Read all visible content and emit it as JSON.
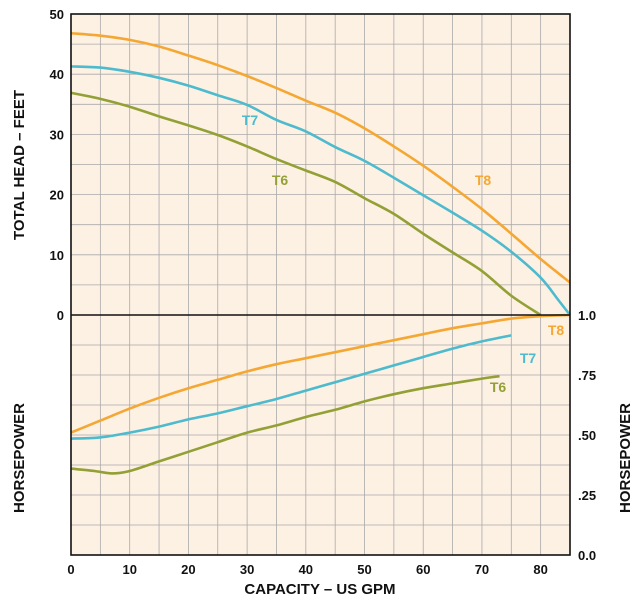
{
  "chart_data": [
    {
      "type": "line",
      "title": "",
      "xlabel": "CAPACITY – US GPM",
      "ylabel": "TOTAL HEAD – FEET",
      "xlim": [
        0,
        85
      ],
      "ylim": [
        0,
        50
      ],
      "x_ticks": [
        "0",
        "10",
        "20",
        "30",
        "40",
        "50",
        "60",
        "70",
        "80"
      ],
      "y_ticks": [
        "0",
        "10",
        "20",
        "30",
        "40",
        "50"
      ],
      "grid": true,
      "background": "#fdf1e4",
      "series": [
        {
          "name": "T8",
          "color": "#f5a733",
          "points": [
            [
              0,
              46.8
            ],
            [
              5,
              46.4
            ],
            [
              10,
              45.7
            ],
            [
              15,
              44.6
            ],
            [
              20,
              43.1
            ],
            [
              25,
              41.5
            ],
            [
              30,
              39.7
            ],
            [
              35,
              37.7
            ],
            [
              40,
              35.6
            ],
            [
              45,
              33.6
            ],
            [
              50,
              31.0
            ],
            [
              55,
              28.0
            ],
            [
              60,
              24.8
            ],
            [
              65,
              21.3
            ],
            [
              70,
              17.6
            ],
            [
              75,
              13.5
            ],
            [
              80,
              9.3
            ],
            [
              85,
              5.4
            ]
          ]
        },
        {
          "name": "T7",
          "color": "#4dbacd",
          "points": [
            [
              0,
              41.3
            ],
            [
              5,
              41.1
            ],
            [
              10,
              40.4
            ],
            [
              15,
              39.4
            ],
            [
              20,
              38.1
            ],
            [
              25,
              36.5
            ],
            [
              30,
              34.9
            ],
            [
              35,
              32.4
            ],
            [
              40,
              30.5
            ],
            [
              45,
              27.9
            ],
            [
              50,
              25.6
            ],
            [
              55,
              22.8
            ],
            [
              60,
              19.9
            ],
            [
              65,
              17.0
            ],
            [
              70,
              14.0
            ],
            [
              75,
              10.5
            ],
            [
              80,
              6.2
            ],
            [
              83,
              2.5
            ],
            [
              85,
              0
            ]
          ]
        },
        {
          "name": "T6",
          "color": "#93a035",
          "points": [
            [
              0,
              36.9
            ],
            [
              5,
              35.9
            ],
            [
              10,
              34.6
            ],
            [
              15,
              33.0
            ],
            [
              20,
              31.5
            ],
            [
              25,
              29.9
            ],
            [
              30,
              28.0
            ],
            [
              35,
              25.9
            ],
            [
              40,
              24.0
            ],
            [
              45,
              22.1
            ],
            [
              50,
              19.4
            ],
            [
              55,
              16.8
            ],
            [
              60,
              13.5
            ],
            [
              65,
              10.4
            ],
            [
              70,
              7.3
            ],
            [
              75,
              3.2
            ],
            [
              80,
              0
            ]
          ]
        }
      ]
    },
    {
      "type": "line",
      "title": "",
      "xlabel": "CAPACITY – US GPM",
      "ylabel": "HORSEPOWER",
      "ylabel_right": "HORSEPOWER",
      "xlim": [
        0,
        85
      ],
      "ylim": [
        0,
        1.0
      ],
      "y_ticks": [
        "0.0",
        ".25",
        ".50",
        ".75",
        "1.0"
      ],
      "grid": true,
      "series": [
        {
          "name": "T8",
          "color": "#f5a733",
          "points": [
            [
              0,
              0.51
            ],
            [
              5,
              0.56
            ],
            [
              10,
              0.61
            ],
            [
              15,
              0.655
            ],
            [
              20,
              0.695
            ],
            [
              25,
              0.73
            ],
            [
              30,
              0.765
            ],
            [
              35,
              0.795
            ],
            [
              40,
              0.82
            ],
            [
              45,
              0.845
            ],
            [
              50,
              0.87
            ],
            [
              55,
              0.895
            ],
            [
              60,
              0.92
            ],
            [
              65,
              0.945
            ],
            [
              70,
              0.965
            ],
            [
              75,
              0.985
            ],
            [
              80,
              0.995
            ],
            [
              85,
              1.0
            ]
          ]
        },
        {
          "name": "T7",
          "color": "#4dbacd",
          "points": [
            [
              0,
              0.485
            ],
            [
              5,
              0.49
            ],
            [
              10,
              0.51
            ],
            [
              15,
              0.535
            ],
            [
              20,
              0.565
            ],
            [
              25,
              0.59
            ],
            [
              30,
              0.62
            ],
            [
              35,
              0.65
            ],
            [
              40,
              0.685
            ],
            [
              45,
              0.72
            ],
            [
              50,
              0.755
            ],
            [
              55,
              0.79
            ],
            [
              60,
              0.825
            ],
            [
              65,
              0.86
            ],
            [
              70,
              0.89
            ],
            [
              75,
              0.915
            ]
          ]
        },
        {
          "name": "T6",
          "color": "#93a035",
          "points": [
            [
              0,
              0.36
            ],
            [
              4,
              0.35
            ],
            [
              7,
              0.34
            ],
            [
              10,
              0.35
            ],
            [
              15,
              0.39
            ],
            [
              20,
              0.43
            ],
            [
              25,
              0.47
            ],
            [
              30,
              0.51
            ],
            [
              35,
              0.54
            ],
            [
              40,
              0.575
            ],
            [
              45,
              0.605
            ],
            [
              50,
              0.64
            ],
            [
              55,
              0.67
            ],
            [
              60,
              0.695
            ],
            [
              65,
              0.715
            ],
            [
              70,
              0.735
            ],
            [
              73,
              0.745
            ]
          ]
        }
      ]
    }
  ]
}
